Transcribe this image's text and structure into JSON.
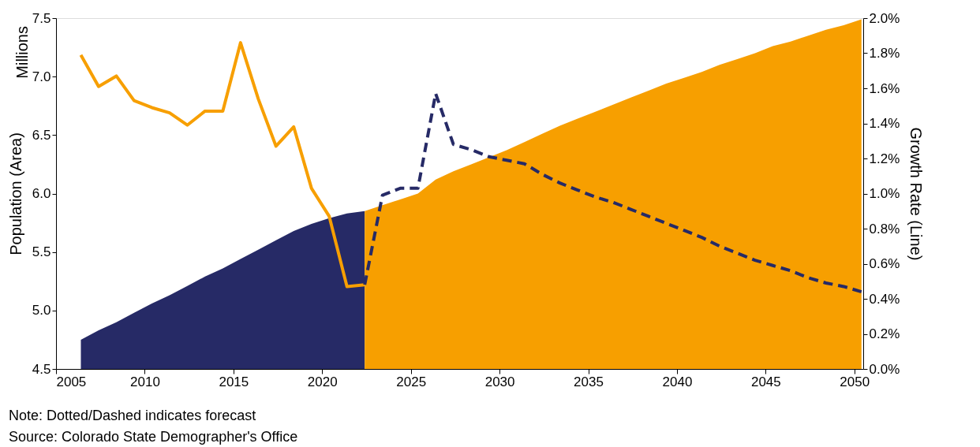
{
  "chart_data": {
    "type": "area",
    "ylabel": "Population (Area)",
    "y2label": "Growth Rate (Line)",
    "annotations": [
      "Millions",
      "Note: Dotted/Dashed indicates forecast",
      "Source: Colorado State Demographer's Office"
    ],
    "xlim": [
      2005,
      2050.5
    ],
    "xticks": [
      2005,
      2010,
      2015,
      2020,
      2025,
      2030,
      2035,
      2040,
      2045,
      2050
    ],
    "ylim": [
      4.5,
      7.5
    ],
    "yticks": [
      4.5,
      {
        "value": 5,
        "label": "5.0"
      },
      5.5,
      {
        "value": 6,
        "label": "6.0"
      },
      6.5,
      {
        "value": 7,
        "label": "7.0"
      },
      7.5
    ],
    "y2lim": [
      0,
      2
    ],
    "y2ticks": [
      {
        "value": 0,
        "label": "0.0%"
      },
      {
        "value": 0.2,
        "label": "0.2%"
      },
      {
        "value": 0.4,
        "label": "0.4%"
      },
      {
        "value": 0.6,
        "label": "0.6%"
      },
      {
        "value": 0.8,
        "label": "0.8%"
      },
      {
        "value": 1,
        "label": "1.0%"
      },
      {
        "value": 1.2,
        "label": "1.2%"
      },
      {
        "value": 1.4,
        "label": "1.4%"
      },
      {
        "value": 1.6,
        "label": "1.6%"
      },
      {
        "value": 1.8,
        "label": "1.8%"
      },
      {
        "value": 2,
        "label": "2.0%"
      }
    ],
    "grid": false,
    "marker": "none",
    "series": [
      {
        "color": "#262a66",
        "x": [
          2006.4,
          2007.4,
          2008.4,
          2009.4,
          2010.4,
          2011.4,
          2012.4,
          2013.4,
          2014.4,
          2015.4,
          2016.4,
          2017.4,
          2018.4,
          2019.4,
          2020.4,
          2021.4,
          2022.4
        ],
        "values": [
          4.75,
          4.83,
          4.9,
          4.98,
          5.06,
          5.13,
          5.21,
          5.29,
          5.36,
          5.44,
          5.52,
          5.6,
          5.68,
          5.74,
          5.79,
          5.83,
          5.85
        ]
      },
      {
        "color": "#f79f00",
        "x": [
          2022.4,
          2023.4,
          2024.4,
          2025.4,
          2026.4,
          2027.4,
          2028.4,
          2029.4,
          2030.4,
          2031.4,
          2032.4,
          2033.4,
          2034.4,
          2035.4,
          2036.4,
          2037.4,
          2038.4,
          2039.4,
          2040.4,
          2041.4,
          2042.4,
          2043.4,
          2044.4,
          2045.4,
          2046.4,
          2047.4,
          2048.4,
          2049.4,
          2050.4
        ],
        "values": [
          5.85,
          5.9,
          5.95,
          6.0,
          6.12,
          6.19,
          6.25,
          6.31,
          6.37,
          6.44,
          6.51,
          6.58,
          6.64,
          6.7,
          6.76,
          6.82,
          6.88,
          6.94,
          6.99,
          7.04,
          7.1,
          7.15,
          7.2,
          7.26,
          7.3,
          7.35,
          7.4,
          7.44,
          7.49
        ]
      },
      {
        "type": "line",
        "axis": "y2",
        "line_style": "solid",
        "color": "#f79f00",
        "x": [
          2006.4,
          2007.4,
          2008.4,
          2009.4,
          2010.4,
          2011.4,
          2012.4,
          2013.4,
          2014.4,
          2015.4,
          2016.4,
          2017.4,
          2018.4,
          2019.4,
          2020.4,
          2021.4,
          2022.4
        ],
        "values": [
          1.79,
          1.61,
          1.67,
          1.53,
          1.49,
          1.46,
          1.39,
          1.47,
          1.47,
          1.86,
          1.54,
          1.27,
          1.38,
          1.03,
          0.87,
          0.47,
          0.48
        ]
      },
      {
        "type": "line",
        "axis": "y2",
        "line_style": "dashed",
        "color": "#262a66",
        "x": [
          2022.4,
          2023.4,
          2024.4,
          2025.4,
          2026.4,
          2027.4,
          2028.4,
          2029.4,
          2030.4,
          2031.4,
          2032.4,
          2033.4,
          2034.4,
          2035.4,
          2036.4,
          2037.4,
          2038.4,
          2039.4,
          2040.4,
          2041.4,
          2042.4,
          2043.4,
          2044.4,
          2045.4,
          2046.4,
          2047.4,
          2048.4,
          2049.4,
          2050.4
        ],
        "values": [
          0.48,
          0.99,
          1.03,
          1.03,
          1.57,
          1.28,
          1.25,
          1.21,
          1.19,
          1.17,
          1.11,
          1.06,
          1.02,
          0.98,
          0.95,
          0.91,
          0.87,
          0.83,
          0.79,
          0.75,
          0.7,
          0.66,
          0.62,
          0.59,
          0.56,
          0.52,
          0.49,
          0.47,
          0.44
        ]
      }
    ]
  }
}
